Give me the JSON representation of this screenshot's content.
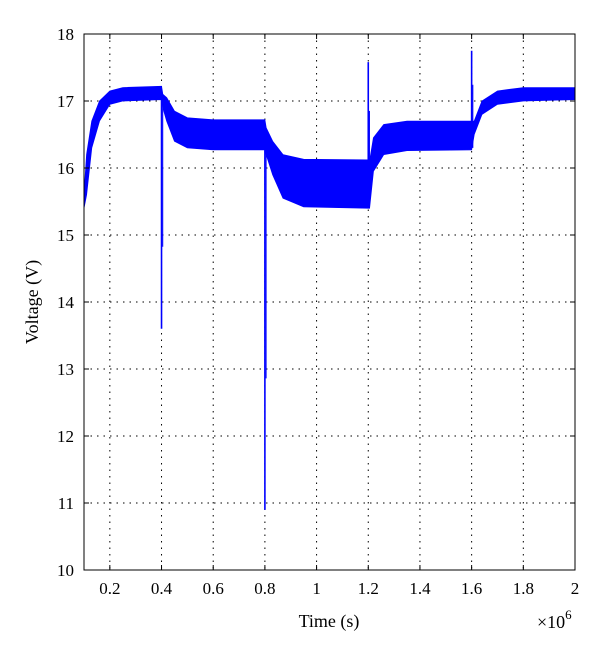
{
  "chart_data": {
    "type": "line",
    "title": "",
    "xlabel": "Time (s)",
    "ylabel": "Voltage (V)",
    "x_multiplier_label": "×10",
    "x_multiplier_exponent": "6",
    "xlim": [
      0.1,
      2.0
    ],
    "ylim": [
      10,
      18
    ],
    "xticks": [
      0.2,
      0.4,
      0.6,
      0.8,
      1,
      1.2,
      1.4,
      1.6,
      1.8,
      2
    ],
    "xtick_labels": [
      "0.2",
      "0.4",
      "0.6",
      "0.8",
      "1",
      "1.2",
      "1.4",
      "1.6",
      "1.8",
      "2"
    ],
    "yticks": [
      10,
      11,
      12,
      13,
      14,
      15,
      16,
      17,
      18
    ],
    "ytick_labels": [
      "10",
      "11",
      "12",
      "13",
      "14",
      "15",
      "16",
      "17",
      "18"
    ],
    "grid": true,
    "series": [
      {
        "color": "#0000ff",
        "band_upper": [
          [
            0.1,
            15.6
          ],
          [
            0.11,
            16.2
          ],
          [
            0.13,
            16.7
          ],
          [
            0.16,
            17.0
          ],
          [
            0.2,
            17.15
          ],
          [
            0.25,
            17.2
          ],
          [
            0.4,
            17.22
          ],
          [
            0.405,
            17.1
          ],
          [
            0.42,
            17.05
          ],
          [
            0.45,
            16.85
          ],
          [
            0.5,
            16.75
          ],
          [
            0.6,
            16.72
          ],
          [
            0.8,
            16.72
          ],
          [
            0.805,
            16.6
          ],
          [
            0.83,
            16.4
          ],
          [
            0.87,
            16.2
          ],
          [
            0.95,
            16.13
          ],
          [
            1.2,
            16.12
          ],
          [
            1.205,
            16.1
          ],
          [
            1.22,
            16.45
          ],
          [
            1.26,
            16.65
          ],
          [
            1.35,
            16.7
          ],
          [
            1.6,
            16.7
          ],
          [
            1.61,
            16.7
          ],
          [
            1.64,
            17.0
          ],
          [
            1.7,
            17.15
          ],
          [
            1.8,
            17.2
          ],
          [
            2.0,
            17.2
          ]
        ],
        "band_lower": [
          [
            0.1,
            15.4
          ],
          [
            0.11,
            15.6
          ],
          [
            0.13,
            16.3
          ],
          [
            0.16,
            16.7
          ],
          [
            0.2,
            16.95
          ],
          [
            0.25,
            17.0
          ],
          [
            0.4,
            17.02
          ],
          [
            0.405,
            16.9
          ],
          [
            0.42,
            16.7
          ],
          [
            0.45,
            16.4
          ],
          [
            0.5,
            16.3
          ],
          [
            0.6,
            16.27
          ],
          [
            0.8,
            16.27
          ],
          [
            0.805,
            16.2
          ],
          [
            0.83,
            15.9
          ],
          [
            0.87,
            15.55
          ],
          [
            0.95,
            15.42
          ],
          [
            1.2,
            15.4
          ],
          [
            1.205,
            15.4
          ],
          [
            1.22,
            15.95
          ],
          [
            1.26,
            16.2
          ],
          [
            1.35,
            16.26
          ],
          [
            1.6,
            16.27
          ],
          [
            1.61,
            16.5
          ],
          [
            1.64,
            16.8
          ],
          [
            1.7,
            16.95
          ],
          [
            1.8,
            17.0
          ],
          [
            2.0,
            17.02
          ]
        ],
        "spikes": [
          {
            "x": 0.4,
            "from": 17.1,
            "to": 13.6
          },
          {
            "x": 0.8,
            "from": 16.5,
            "to": 10.9
          },
          {
            "x": 1.2,
            "from": 15.5,
            "to": 17.58
          },
          {
            "x": 1.6,
            "from": 16.3,
            "to": 17.75
          }
        ]
      }
    ]
  }
}
